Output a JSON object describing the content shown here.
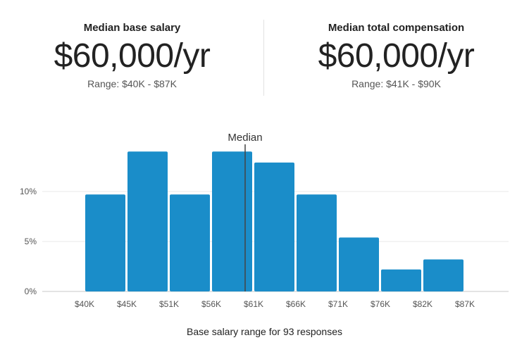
{
  "stats": {
    "base": {
      "title": "Median base salary",
      "value": "$60,000/yr",
      "range": "Range: $40K - $87K"
    },
    "total": {
      "title": "Median total compensation",
      "value": "$60,000/yr",
      "range": "Range: $41K - $90K"
    }
  },
  "chart_data": {
    "type": "bar",
    "title": "",
    "xlabel": "Base salary range for 93 responses",
    "ylabel": "",
    "x_tick_labels": [
      "$40K",
      "$45K",
      "$51K",
      "$56K",
      "$61K",
      "$66K",
      "$71K",
      "$76K",
      "$82K",
      "$87K"
    ],
    "bins": [
      {
        "from": "$40K",
        "to": "$45K",
        "value": 9.7
      },
      {
        "from": "$45K",
        "to": "$51K",
        "value": 14.0
      },
      {
        "from": "$51K",
        "to": "$56K",
        "value": 9.7
      },
      {
        "from": "$56K",
        "to": "$61K",
        "value": 14.0
      },
      {
        "from": "$61K",
        "to": "$66K",
        "value": 12.9
      },
      {
        "from": "$66K",
        "to": "$71K",
        "value": 9.7
      },
      {
        "from": "$71K",
        "to": "$76K",
        "value": 5.4
      },
      {
        "from": "$76K",
        "to": "$82K",
        "value": 2.2
      },
      {
        "from": "$82K",
        "to": "$87K",
        "value": 3.2
      }
    ],
    "y_ticks": [
      {
        "value": 0,
        "label": "0%"
      },
      {
        "value": 5,
        "label": "5%"
      },
      {
        "value": 10,
        "label": "10%"
      }
    ],
    "ylim": [
      0,
      15
    ],
    "grid": true,
    "median": {
      "label": "Median",
      "bin_position": 3.8
    },
    "bar_color": "#1a8dc9"
  },
  "caption": "Base salary range for 93 responses"
}
